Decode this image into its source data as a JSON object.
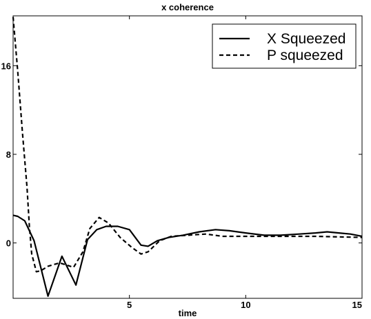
{
  "chart_data": {
    "type": "line",
    "title": "x coherence",
    "xlabel": "time",
    "ylabel": "",
    "xlim": [
      0,
      15
    ],
    "ylim": [
      -5,
      20.5
    ],
    "xticks": [
      5,
      10,
      15
    ],
    "yticks": [
      0,
      8,
      16
    ],
    "grid": false,
    "legend_position": "top-right",
    "series": [
      {
        "name": "X Squeezed",
        "style": "solid",
        "color": "#000000",
        "x": [
          0,
          0.2,
          0.5,
          0.9,
          1.5,
          2.1,
          2.7,
          3.2,
          3.6,
          4.0,
          4.5,
          5.0,
          5.5,
          5.8,
          6.2,
          6.7,
          7.3,
          8.0,
          8.7,
          9.3,
          10.0,
          10.8,
          11.5,
          12.3,
          13.0,
          13.5,
          14.0,
          14.5,
          15.0
        ],
        "y": [
          2.5,
          2.4,
          2.0,
          0.2,
          -4.8,
          -1.2,
          -3.8,
          0.3,
          1.2,
          1.5,
          1.5,
          1.2,
          -0.2,
          -0.3,
          0.2,
          0.5,
          0.7,
          1.0,
          1.2,
          1.1,
          0.9,
          0.7,
          0.7,
          0.8,
          0.9,
          1.0,
          0.9,
          0.8,
          0.6
        ]
      },
      {
        "name": "P squeezed",
        "style": "dashed",
        "color": "#000000",
        "x": [
          0,
          0.2,
          0.4,
          0.6,
          0.7,
          0.8,
          0.9,
          1.0,
          1.2,
          1.5,
          2.0,
          2.6,
          3.0,
          3.3,
          3.7,
          4.1,
          4.6,
          5.1,
          5.5,
          5.8,
          6.3,
          6.8,
          7.5,
          8.3,
          9.0,
          10.0,
          11.0,
          12.0,
          13.0,
          14.0,
          15.0
        ],
        "y": [
          20.4,
          15.5,
          10.0,
          5.0,
          1.5,
          -1.0,
          -1.8,
          -2.6,
          -2.5,
          -2.1,
          -1.8,
          -2.2,
          -0.8,
          1.3,
          2.3,
          1.8,
          0.5,
          -0.4,
          -1.0,
          -0.8,
          0.2,
          0.6,
          0.7,
          0.8,
          0.6,
          0.6,
          0.6,
          0.6,
          0.6,
          0.55,
          0.5
        ]
      }
    ]
  }
}
